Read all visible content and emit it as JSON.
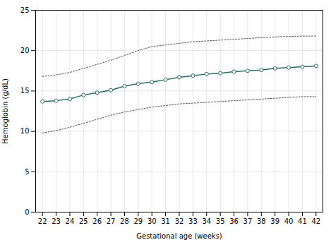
{
  "chart_data": {
    "type": "line",
    "xlabel": "Gestational age (weeks)",
    "ylabel": "Hemoglobin (g/dL)",
    "x": [
      22,
      23,
      24,
      25,
      26,
      27,
      28,
      29,
      30,
      31,
      32,
      33,
      34,
      35,
      36,
      37,
      38,
      39,
      40,
      41,
      42
    ],
    "series": [
      {
        "color": "#555555",
        "line_style": "dotted",
        "values": [
          16.8,
          17.0,
          17.3,
          17.8,
          18.3,
          18.8,
          19.4,
          20.0,
          20.5,
          20.7,
          20.9,
          21.1,
          21.2,
          21.3,
          21.4,
          21.5,
          21.6,
          21.7,
          21.75,
          21.8,
          21.8
        ]
      },
      {
        "color": "#555555",
        "line_style": "dotted",
        "values": [
          9.8,
          10.1,
          10.5,
          11.0,
          11.5,
          12.0,
          12.4,
          12.7,
          13.0,
          13.2,
          13.4,
          13.5,
          13.6,
          13.7,
          13.8,
          13.9,
          14.0,
          14.1,
          14.2,
          14.3,
          14.3
        ]
      },
      {
        "color": "#2e6b5e",
        "line_style": "solid",
        "marker": "circle",
        "values": [
          13.7,
          13.8,
          14.0,
          14.5,
          14.8,
          15.1,
          15.6,
          15.9,
          16.1,
          16.4,
          16.7,
          16.9,
          17.1,
          17.2,
          17.4,
          17.5,
          17.6,
          17.8,
          17.9,
          18.0,
          18.1
        ]
      }
    ],
    "xlim": [
      21.5,
      42.5
    ],
    "xticks": [
      22,
      23,
      24,
      25,
      26,
      27,
      28,
      29,
      30,
      31,
      32,
      33,
      34,
      35,
      36,
      37,
      38,
      39,
      40,
      41,
      42
    ],
    "ylim": [
      0,
      25
    ],
    "yticks": [
      0,
      5,
      10,
      15,
      20,
      25
    ],
    "grid": true
  }
}
